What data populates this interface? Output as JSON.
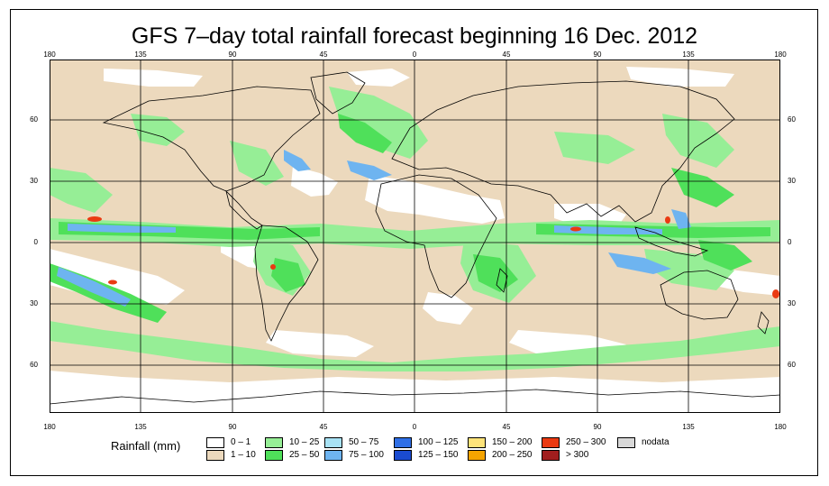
{
  "title": "GFS 7–day total rainfall forecast beginning 16 Dec. 2012",
  "axes": {
    "longitude_ticks": [
      "180",
      "135",
      "90",
      "45",
      "0",
      "45",
      "90",
      "135",
      "180"
    ],
    "latitude_ticks": [
      "60",
      "30",
      "0",
      "30",
      "60"
    ]
  },
  "legend": {
    "title": "Rainfall (mm)",
    "items": [
      {
        "label": "0 – 1",
        "color": "#ffffff"
      },
      {
        "label": "1 – 10",
        "color": "#ecd9bd"
      },
      {
        "label": "10 – 25",
        "color": "#96ee96"
      },
      {
        "label": "25 – 50",
        "color": "#4fe05a"
      },
      {
        "label": "50 – 75",
        "color": "#a8e2f4"
      },
      {
        "label": "75 – 100",
        "color": "#6eb4f0"
      },
      {
        "label": "100 – 125",
        "color": "#2f6fe6"
      },
      {
        "label": "125 – 150",
        "color": "#1a4bd0"
      },
      {
        "label": "150 – 200",
        "color": "#fde37a"
      },
      {
        "label": "200 – 250",
        "color": "#f5a400"
      },
      {
        "label": "250 – 300",
        "color": "#ea3a12"
      },
      {
        "label": "> 300",
        "color": "#a01e1e"
      },
      {
        "label": "nodata",
        "color": "#d8d8d8"
      }
    ]
  },
  "colors": {
    "ocean_dry": "#ffffff",
    "light_rain": "#ecd9bd",
    "moderate_rain": "#96ee96",
    "heavy_rain": "#4fe05a",
    "very_heavy": "#6eb4f0",
    "extreme": "#ea3a12",
    "gridline": "#000000",
    "coast": "#000000"
  }
}
